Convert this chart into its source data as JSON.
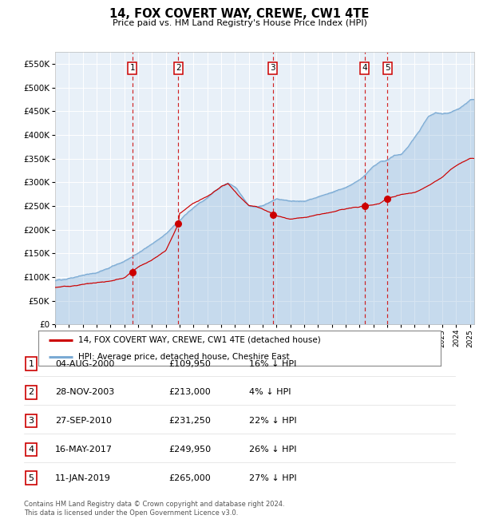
{
  "title": "14, FOX COVERT WAY, CREWE, CW1 4TE",
  "subtitle": "Price paid vs. HM Land Registry's House Price Index (HPI)",
  "legend_line1": "14, FOX COVERT WAY, CREWE, CW1 4TE (detached house)",
  "legend_line2": "HPI: Average price, detached house, Cheshire East",
  "footer1": "Contains HM Land Registry data © Crown copyright and database right 2024.",
  "footer2": "This data is licensed under the Open Government Licence v3.0.",
  "hpi_color": "#7aaad4",
  "hpi_fill": "#d6e8f5",
  "price_color": "#cc0000",
  "background_chart": "#e8f0f8",
  "grid_color": "#ffffff",
  "ylim": [
    0,
    575000
  ],
  "yticks": [
    0,
    50000,
    100000,
    150000,
    200000,
    250000,
    300000,
    350000,
    400000,
    450000,
    500000,
    550000
  ],
  "xlim_start": 1995.0,
  "xlim_end": 2025.3,
  "sale_dates": [
    2000.58,
    2003.91,
    2010.74,
    2017.37,
    2019.03
  ],
  "sale_prices": [
    109950,
    213000,
    231250,
    249950,
    265000
  ],
  "sale_labels": [
    "1",
    "2",
    "3",
    "4",
    "5"
  ],
  "hpi_anchors_x": [
    1995,
    1996,
    1997,
    1998,
    1999,
    2000,
    2001,
    2002,
    2003,
    2004,
    2005,
    2006,
    2007,
    2007.5,
    2008,
    2008.5,
    2009,
    2009.5,
    2010,
    2010.5,
    2011,
    2012,
    2013,
    2014,
    2015,
    2016,
    2017,
    2017.5,
    2018,
    2018.5,
    2019,
    2019.5,
    2020,
    2020.5,
    2021,
    2021.5,
    2022,
    2022.5,
    2023,
    2023.5,
    2024,
    2024.5,
    2025
  ],
  "hpi_anchors_y": [
    92000,
    97000,
    104000,
    112000,
    122000,
    135000,
    152000,
    172000,
    192000,
    220000,
    248000,
    270000,
    295000,
    305000,
    295000,
    275000,
    255000,
    252000,
    255000,
    262000,
    268000,
    262000,
    262000,
    270000,
    278000,
    290000,
    308000,
    320000,
    335000,
    345000,
    350000,
    358000,
    360000,
    375000,
    398000,
    420000,
    442000,
    448000,
    445000,
    448000,
    453000,
    462000,
    475000
  ],
  "price_anchors_x": [
    1995,
    1996,
    1997,
    1998,
    1999,
    2000,
    2000.58,
    2001,
    2002,
    2003,
    2003.91,
    2004,
    2005,
    2006,
    2007,
    2007.5,
    2008,
    2008.5,
    2009,
    2009.5,
    2010,
    2010.74,
    2011,
    2012,
    2013,
    2014,
    2015,
    2016,
    2017,
    2017.37,
    2018,
    2018.5,
    2019.03,
    2019.5,
    2020,
    2021,
    2022,
    2023,
    2024,
    2025
  ],
  "price_anchors_y": [
    78000,
    80000,
    83000,
    86000,
    90000,
    97000,
    109950,
    120000,
    135000,
    155000,
    213000,
    235000,
    255000,
    268000,
    290000,
    295000,
    280000,
    262000,
    248000,
    245000,
    240000,
    231250,
    228000,
    220000,
    225000,
    232000,
    238000,
    244000,
    248000,
    249950,
    252000,
    255000,
    265000,
    268000,
    272000,
    278000,
    292000,
    310000,
    335000,
    350000
  ],
  "sale_info": [
    {
      "num": "1",
      "date": "04-AUG-2000",
      "price": "£109,950",
      "pct": "16% ↓ HPI"
    },
    {
      "num": "2",
      "date": "28-NOV-2003",
      "price": "£213,000",
      "pct": "4% ↓ HPI"
    },
    {
      "num": "3",
      "date": "27-SEP-2010",
      "price": "£231,250",
      "pct": "22% ↓ HPI"
    },
    {
      "num": "4",
      "date": "16-MAY-2017",
      "price": "£249,950",
      "pct": "26% ↓ HPI"
    },
    {
      "num": "5",
      "date": "11-JAN-2019",
      "price": "£265,000",
      "pct": "27% ↓ HPI"
    }
  ]
}
